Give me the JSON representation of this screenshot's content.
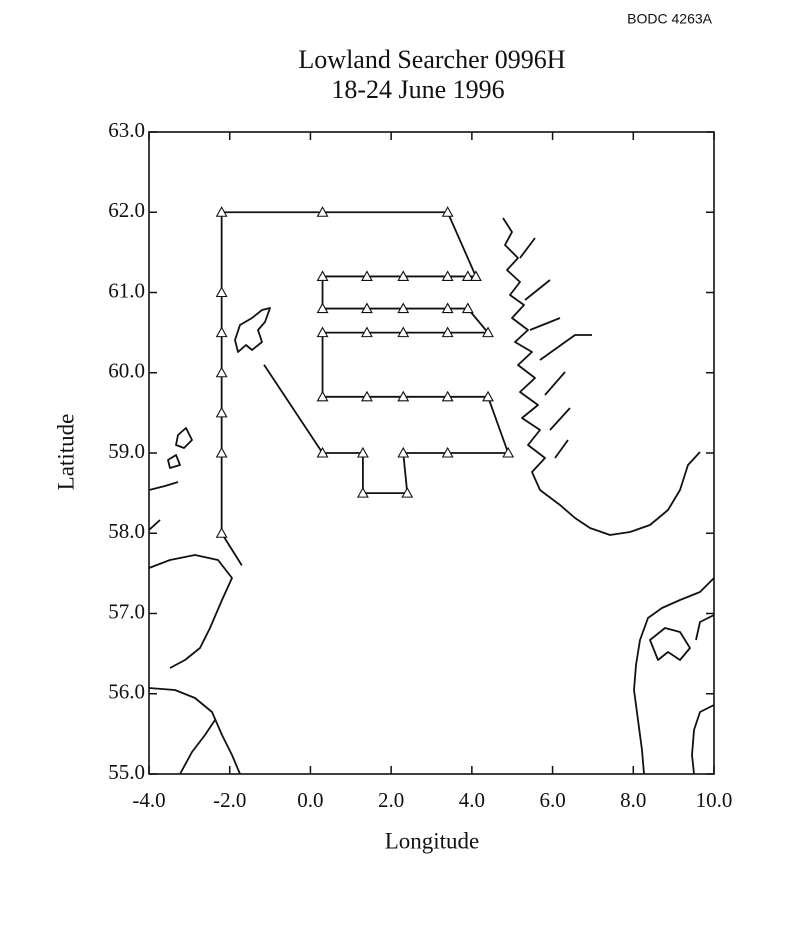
{
  "chart_data": [
    {
      "type": "line",
      "title": "Lowland Searcher 0996H",
      "subtitle": "18-24 June 1996",
      "annotations": [
        "BODC 4263A"
      ],
      "x_label": "Longitude",
      "y_label": "Latitude",
      "xlim": [
        -4,
        10
      ],
      "ylim": [
        55,
        63
      ],
      "xticks": [
        {
          "value": -4,
          "label": "-4.0"
        },
        {
          "value": -2,
          "label": "-2.0"
        },
        {
          "value": 0,
          "label": "0.0"
        },
        {
          "value": 2,
          "label": "2.0"
        },
        {
          "value": 4,
          "label": "4.0"
        },
        {
          "value": 6,
          "label": "6.0"
        },
        {
          "value": 8,
          "label": "8.0"
        },
        {
          "value": 10,
          "label": "10.0"
        }
      ],
      "yticks": [
        {
          "value": 55,
          "label": "55.0"
        },
        {
          "value": 56,
          "label": "56.0"
        },
        {
          "value": 57,
          "label": "57.0"
        },
        {
          "value": 58,
          "label": "58.0"
        },
        {
          "value": 59,
          "label": "59.0"
        },
        {
          "value": 60,
          "label": "60.0"
        },
        {
          "value": 61,
          "label": "61.0"
        },
        {
          "value": 62,
          "label": "62.0"
        },
        {
          "value": 63,
          "label": "63.0"
        }
      ],
      "color": "#111111",
      "x": [
        -1.15,
        0.3,
        1.3,
        1.3,
        2.4,
        2.3,
        4.9,
        4.4,
        0.3,
        0.3,
        4.4,
        3.9,
        0.3,
        0.3,
        4.1,
        3.4,
        -2.2,
        -2.2,
        -1.7
      ],
      "values": [
        60.1,
        59.0,
        59.0,
        58.5,
        58.5,
        59.0,
        59.0,
        59.7,
        59.7,
        60.5,
        60.5,
        60.8,
        60.8,
        61.2,
        61.2,
        62.0,
        62.0,
        58.0,
        57.6
      ]
    },
    {
      "type": "scatter",
      "color": "#111111",
      "x": [
        -2.2,
        0.3,
        3.4,
        0.3,
        1.4,
        2.3,
        3.4,
        3.9,
        4.1,
        0.3,
        1.4,
        2.3,
        3.4,
        3.9,
        0.3,
        1.4,
        2.3,
        3.4,
        4.4,
        0.3,
        1.4,
        2.3,
        3.4,
        4.4,
        0.3,
        1.3,
        2.3,
        3.4,
        4.9,
        1.3,
        2.4,
        -2.2,
        -2.2,
        -2.2,
        -2.2,
        -2.2,
        -2.2
      ],
      "values": [
        62.0,
        62.0,
        62.0,
        61.2,
        61.2,
        61.2,
        61.2,
        61.2,
        61.2,
        60.8,
        60.8,
        60.8,
        60.8,
        60.8,
        60.5,
        60.5,
        60.5,
        60.5,
        60.5,
        59.7,
        59.7,
        59.7,
        59.7,
        59.7,
        59.0,
        59.0,
        59.0,
        59.0,
        59.0,
        58.5,
        58.5,
        61.0,
        60.5,
        60.0,
        59.5,
        59.0,
        58.0
      ]
    }
  ]
}
